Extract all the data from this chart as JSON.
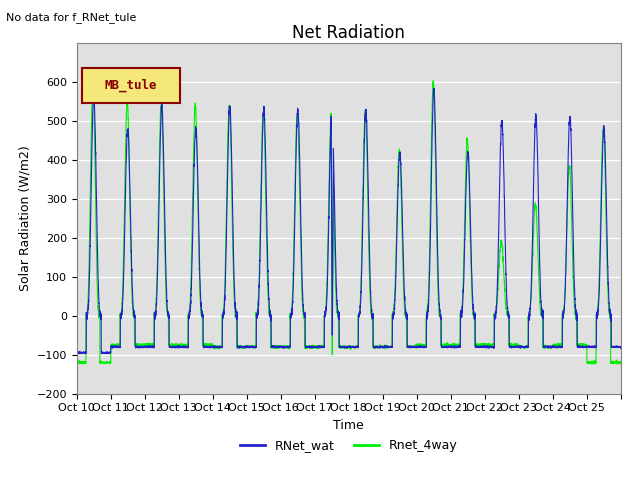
{
  "title": "Net Radiation",
  "xlabel": "Time",
  "ylabel": "Solar Radiation (W/m2)",
  "ylim": [
    -200,
    700
  ],
  "yticks": [
    -200,
    -100,
    0,
    100,
    200,
    300,
    400,
    500,
    600
  ],
  "xtick_labels": [
    "Oct 10",
    "Oct 11",
    "Oct 12",
    "Oct 13",
    "Oct 14",
    "Oct 15",
    "Oct 16",
    "Oct 17",
    "Oct 18",
    "Oct 19",
    "Oct 20",
    "Oct 21",
    "Oct 22",
    "Oct 23",
    "Oct 24",
    "Oct 25"
  ],
  "no_data_text": "No data for f_RNet_tule",
  "legend_box_text": "MB_tule",
  "line1_color": "#2222cc",
  "line2_color": "#00ee00",
  "line1_label": "RNet_wat",
  "line2_label": "Rnet_4way",
  "bg_color": "#e0e0e0",
  "title_fontsize": 12,
  "label_fontsize": 9,
  "tick_fontsize": 8
}
